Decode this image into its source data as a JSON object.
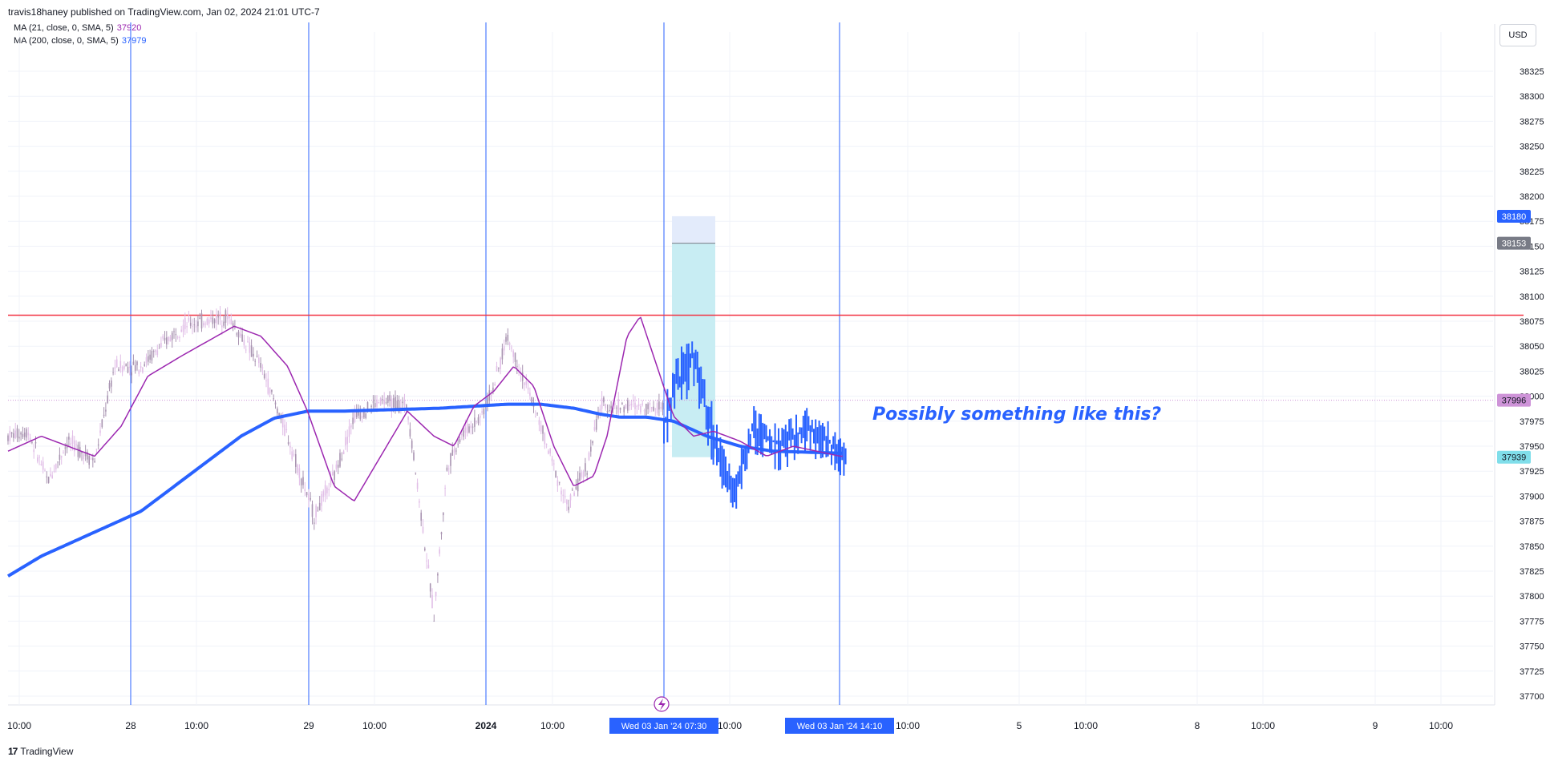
{
  "header": {
    "published_by": "travis18haney published on TradingView.com, Jan 02, 2024 21:01 UTC-7"
  },
  "indicators": [
    {
      "label": "MA (21, close, 0, SMA, 5)",
      "value": "37920",
      "color": "#9c27b0"
    },
    {
      "label": "MA (200, close, 0, SMA, 5)",
      "value": "37979",
      "color": "#2962ff"
    }
  ],
  "currency_button": "USD",
  "annotation": "Possibly something like this?",
  "footer": {
    "brand": "TradingView",
    "logo_glyph": "17"
  },
  "price_tags": [
    {
      "value": "38180",
      "bg": "#2962ff",
      "color": "#ffffff"
    },
    {
      "value": "38153",
      "bg": "#787b86",
      "color": "#ffffff"
    },
    {
      "value": "37996",
      "bg": "#ce93d8",
      "color": "#131722"
    },
    {
      "value": "37939",
      "bg": "#80deea",
      "color": "#131722"
    }
  ],
  "time_tags": [
    "Wed 03 Jan '24   07:30",
    "Wed 03 Jan '24   14:10"
  ],
  "colors": {
    "candles": "#c9a3d6",
    "projection": "#2962ff",
    "ma21": "#9c27b0",
    "ma200": "#2962ff",
    "resistance": "#f23645",
    "vertical_lines": "#2962ff",
    "target_zone": "#c8edf3",
    "stop_zone": "#e3ebfb",
    "grid": "#f0f3fa"
  },
  "chart_data": {
    "type": "line",
    "symbol_series": "candlestick price (5 min)",
    "x_tick_labels": [
      "10:00",
      "28",
      "10:00",
      "29",
      "10:00",
      "2024",
      "10:00",
      "10:00",
      "10:00",
      "5",
      "10:00",
      "8",
      "10:00",
      "9",
      "10:00"
    ],
    "y_tick_labels": [
      38325,
      38300,
      38275,
      38250,
      38225,
      38200,
      38175,
      38150,
      38125,
      38100,
      38075,
      38050,
      38025,
      38000,
      37975,
      37950,
      37925,
      37900,
      37875,
      37850,
      37825,
      37800,
      37775,
      37750,
      37725,
      37700
    ],
    "ylim": [
      37685,
      38335
    ],
    "horizontal_level": 38081,
    "dotted_level": 37996,
    "last_price": 37939,
    "ma21_last": 37920,
    "ma200_last": 37979,
    "long_position_tool": {
      "entry": 38153,
      "stop": 38180,
      "target": 37939
    },
    "price_path_knots": [
      [
        0,
        37960
      ],
      [
        0.03,
        37965
      ],
      [
        0.06,
        37915
      ],
      [
        0.09,
        37955
      ],
      [
        0.13,
        37935
      ],
      [
        0.16,
        38030
      ],
      [
        0.2,
        38030
      ],
      [
        0.26,
        38070
      ],
      [
        0.33,
        38080
      ],
      [
        0.38,
        38030
      ],
      [
        0.42,
        37960
      ],
      [
        0.46,
        37880
      ],
      [
        0.49,
        37920
      ],
      [
        0.52,
        37980
      ],
      [
        0.56,
        37995
      ],
      [
        0.6,
        37990
      ],
      [
        0.64,
        37780
      ],
      [
        0.66,
        37930
      ],
      [
        0.68,
        37960
      ],
      [
        0.71,
        37980
      ],
      [
        0.73,
        38010
      ],
      [
        0.75,
        38060
      ],
      [
        0.79,
        37990
      ],
      [
        0.82,
        37930
      ],
      [
        0.84,
        37890
      ],
      [
        0.87,
        37930
      ],
      [
        0.89,
        37990
      ]
    ],
    "projection_path_knots": [
      [
        0.89,
        37990
      ],
      [
        0.9,
        38185
      ],
      [
        0.92,
        38150
      ],
      [
        0.94,
        38040
      ],
      [
        0.96,
        37990
      ],
      [
        0.98,
        37950
      ],
      [
        1.0,
        38010
      ],
      [
        1.03,
        38040
      ],
      [
        1.06,
        37960
      ],
      [
        1.09,
        37900
      ],
      [
        1.12,
        37970
      ],
      [
        1.16,
        37950
      ],
      [
        1.2,
        37970
      ],
      [
        1.25,
        37945
      ]
    ],
    "ma21_knots": [
      [
        0,
        37945
      ],
      [
        0.05,
        37960
      ],
      [
        0.09,
        37950
      ],
      [
        0.13,
        37940
      ],
      [
        0.17,
        37970
      ],
      [
        0.21,
        38020
      ],
      [
        0.26,
        38040
      ],
      [
        0.3,
        38055
      ],
      [
        0.34,
        38070
      ],
      [
        0.38,
        38060
      ],
      [
        0.42,
        38030
      ],
      [
        0.45,
        37985
      ],
      [
        0.49,
        37910
      ],
      [
        0.52,
        37895
      ],
      [
        0.56,
        37940
      ],
      [
        0.6,
        37985
      ],
      [
        0.64,
        37960
      ],
      [
        0.67,
        37950
      ],
      [
        0.7,
        37990
      ],
      [
        0.73,
        38005
      ],
      [
        0.76,
        38030
      ],
      [
        0.79,
        38010
      ],
      [
        0.82,
        37950
      ],
      [
        0.85,
        37910
      ],
      [
        0.88,
        37920
      ],
      [
        0.9,
        37960
      ],
      [
        0.93,
        38060
      ],
      [
        0.95,
        38080
      ],
      [
        0.97,
        38040
      ],
      [
        1.0,
        37980
      ],
      [
        1.03,
        37960
      ],
      [
        1.06,
        37965
      ],
      [
        1.1,
        37955
      ],
      [
        1.14,
        37940
      ],
      [
        1.18,
        37950
      ],
      [
        1.25,
        37940
      ]
    ],
    "ma200_knots": [
      [
        0,
        37820
      ],
      [
        0.05,
        37840
      ],
      [
        0.1,
        37855
      ],
      [
        0.15,
        37870
      ],
      [
        0.2,
        37885
      ],
      [
        0.25,
        37910
      ],
      [
        0.3,
        37935
      ],
      [
        0.35,
        37960
      ],
      [
        0.4,
        37978
      ],
      [
        0.45,
        37985
      ],
      [
        0.5,
        37985
      ],
      [
        0.55,
        37986
      ],
      [
        0.6,
        37987
      ],
      [
        0.65,
        37988
      ],
      [
        0.7,
        37990
      ],
      [
        0.75,
        37992
      ],
      [
        0.8,
        37992
      ],
      [
        0.85,
        37988
      ],
      [
        0.89,
        37982
      ],
      [
        0.92,
        37979
      ],
      [
        0.96,
        37979
      ],
      [
        1.0,
        37975
      ],
      [
        1.05,
        37960
      ],
      [
        1.1,
        37950
      ],
      [
        1.15,
        37945
      ],
      [
        1.25,
        37943
      ]
    ]
  }
}
